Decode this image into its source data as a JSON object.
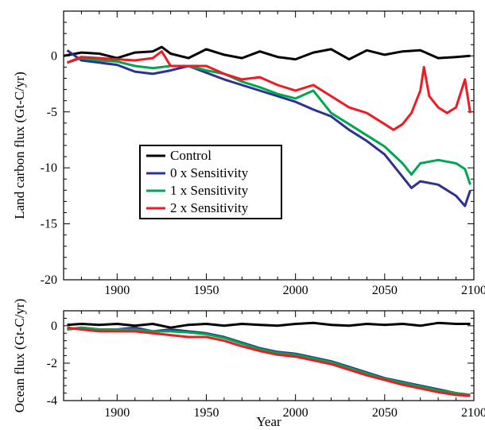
{
  "chart_data": [
    {
      "type": "line",
      "ylabel": "Land carbon flux (Gt-C/yr)",
      "xlabel": "",
      "xlim": [
        1870,
        2100
      ],
      "ylim": [
        -20,
        4
      ],
      "xticks": [
        1900,
        1950,
        2000,
        2050,
        2100
      ],
      "yticks": [
        0,
        -5,
        -10,
        -15,
        -20
      ],
      "grid": false,
      "legend_position": "center-left",
      "series": [
        {
          "name": "Control",
          "color": "#000000",
          "x": [
            1870,
            1880,
            1890,
            1900,
            1910,
            1920,
            1925,
            1930,
            1940,
            1950,
            1960,
            1970,
            1980,
            1990,
            2000,
            2010,
            2020,
            2030,
            2040,
            2050,
            2060,
            2070,
            2080,
            2090,
            2098
          ],
          "y": [
            0,
            0.3,
            0.2,
            -0.2,
            0.3,
            0.4,
            0.8,
            0.2,
            -0.2,
            0.6,
            0.1,
            -0.2,
            0.4,
            -0.1,
            -0.3,
            0.3,
            0.6,
            -0.3,
            0.5,
            0.1,
            0.4,
            0.5,
            -0.2,
            -0.1,
            0
          ]
        },
        {
          "name": "0 x Sensitivity",
          "color": "#2e3192",
          "x": [
            1872,
            1880,
            1890,
            1900,
            1910,
            1920,
            1930,
            1940,
            1950,
            1960,
            1970,
            1980,
            1990,
            2000,
            2010,
            2020,
            2030,
            2040,
            2050,
            2060,
            2065,
            2070,
            2080,
            2090,
            2095,
            2098
          ],
          "y": [
            0.5,
            -0.4,
            -0.6,
            -0.8,
            -1.4,
            -1.6,
            -1.3,
            -0.9,
            -1.5,
            -2.1,
            -2.6,
            -3.1,
            -3.6,
            -4.1,
            -4.8,
            -5.4,
            -6.6,
            -7.6,
            -8.8,
            -10.8,
            -11.8,
            -11.2,
            -11.5,
            -12.5,
            -13.4,
            -12
          ]
        },
        {
          "name": "1 x Sensitivity",
          "color": "#00a651",
          "x": [
            1872,
            1880,
            1890,
            1900,
            1910,
            1920,
            1930,
            1940,
            1950,
            1960,
            1970,
            1980,
            1990,
            2000,
            2010,
            2020,
            2030,
            2040,
            2050,
            2060,
            2065,
            2070,
            2080,
            2090,
            2095,
            2098
          ],
          "y": [
            -0.6,
            -0.2,
            -0.4,
            -0.5,
            -0.9,
            -1.1,
            -0.9,
            -0.9,
            -1.3,
            -1.6,
            -2.3,
            -2.8,
            -3.4,
            -3.8,
            -3.1,
            -5.1,
            -6.1,
            -7.1,
            -8.1,
            -9.6,
            -10.6,
            -9.6,
            -9.3,
            -9.6,
            -10.1,
            -11.5
          ]
        },
        {
          "name": "2 x Sensitivity",
          "color": "#ed1c24",
          "x": [
            1872,
            1880,
            1890,
            1900,
            1910,
            1920,
            1925,
            1930,
            1940,
            1950,
            1960,
            1970,
            1980,
            1990,
            2000,
            2010,
            2020,
            2030,
            2040,
            2050,
            2055,
            2060,
            2065,
            2070,
            2072,
            2075,
            2080,
            2085,
            2090,
            2095,
            2098
          ],
          "y": [
            -0.6,
            -0.1,
            -0.2,
            -0.3,
            -0.4,
            -0.2,
            0.4,
            -0.9,
            -0.9,
            -0.9,
            -1.6,
            -2.1,
            -1.9,
            -2.6,
            -3.1,
            -2.6,
            -3.6,
            -4.6,
            -5.1,
            -6.1,
            -6.6,
            -6.1,
            -5.1,
            -3.1,
            -1.0,
            -3.6,
            -4.6,
            -5.1,
            -4.6,
            -2.1,
            -5.1
          ]
        }
      ]
    },
    {
      "type": "line",
      "ylabel": "Ocean flux (Gt-C/yr)",
      "xlabel": "Year",
      "xlim": [
        1870,
        2100
      ],
      "ylim": [
        -4,
        0.8
      ],
      "xticks": [
        1900,
        1950,
        2000,
        2050,
        2100
      ],
      "yticks": [
        0,
        -2,
        -4
      ],
      "grid": false,
      "series": [
        {
          "name": "Control",
          "color": "#000000",
          "x": [
            1872,
            1880,
            1890,
            1900,
            1910,
            1920,
            1930,
            1940,
            1950,
            1960,
            1970,
            1980,
            1990,
            2000,
            2010,
            2020,
            2030,
            2040,
            2050,
            2060,
            2070,
            2080,
            2090,
            2098
          ],
          "y": [
            0.05,
            0.1,
            0.05,
            0.1,
            0.0,
            0.1,
            -0.1,
            0.05,
            0.1,
            0.0,
            0.1,
            0.05,
            0.0,
            0.1,
            0.15,
            0.05,
            0.0,
            0.1,
            0.05,
            0.1,
            0.0,
            0.15,
            0.1,
            0.1
          ]
        },
        {
          "name": "0 x Sensitivity",
          "color": "#2e3192",
          "x": [
            1872,
            1880,
            1890,
            1900,
            1910,
            1920,
            1930,
            1940,
            1950,
            1960,
            1970,
            1980,
            1990,
            2000,
            2010,
            2020,
            2030,
            2040,
            2050,
            2060,
            2070,
            2080,
            2090,
            2098
          ],
          "y": [
            -0.2,
            -0.1,
            -0.2,
            -0.2,
            -0.1,
            -0.3,
            -0.2,
            -0.3,
            -0.4,
            -0.6,
            -0.9,
            -1.2,
            -1.4,
            -1.5,
            -1.7,
            -1.9,
            -2.2,
            -2.5,
            -2.8,
            -3.0,
            -3.2,
            -3.4,
            -3.6,
            -3.7
          ]
        },
        {
          "name": "1 x Sensitivity",
          "color": "#00a651",
          "x": [
            1872,
            1880,
            1890,
            1900,
            1910,
            1920,
            1930,
            1940,
            1950,
            1960,
            1970,
            1980,
            1990,
            2000,
            2010,
            2020,
            2030,
            2040,
            2050,
            2060,
            2070,
            2080,
            2090,
            2098
          ],
          "y": [
            -0.2,
            -0.1,
            -0.2,
            -0.2,
            -0.2,
            -0.3,
            -0.3,
            -0.35,
            -0.45,
            -0.65,
            -0.95,
            -1.25,
            -1.45,
            -1.55,
            -1.75,
            -1.95,
            -2.25,
            -2.55,
            -2.85,
            -3.05,
            -3.25,
            -3.45,
            -3.6,
            -3.7
          ]
        },
        {
          "name": "2 x Sensitivity",
          "color": "#ed1c24",
          "x": [
            1872,
            1880,
            1890,
            1900,
            1910,
            1920,
            1930,
            1940,
            1950,
            1960,
            1970,
            1980,
            1990,
            2000,
            2010,
            2020,
            2030,
            2040,
            2050,
            2060,
            2070,
            2080,
            2090,
            2098
          ],
          "y": [
            -0.1,
            -0.2,
            -0.3,
            -0.3,
            -0.3,
            -0.4,
            -0.5,
            -0.6,
            -0.6,
            -0.8,
            -1.1,
            -1.35,
            -1.55,
            -1.65,
            -1.85,
            -2.05,
            -2.35,
            -2.65,
            -2.9,
            -3.15,
            -3.35,
            -3.55,
            -3.7,
            -3.75
          ]
        }
      ]
    }
  ]
}
